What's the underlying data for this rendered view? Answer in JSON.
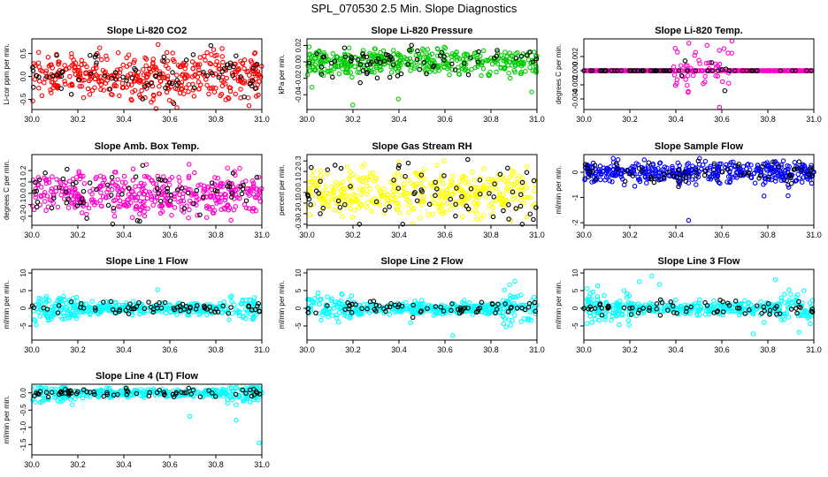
{
  "title": "SPL_070530  2.5 Min. Slope Diagnostics",
  "chart_data": [
    {
      "type": "scatter",
      "title": "Slope Li-820 CO2",
      "ylabel": "Li-cor ppm per min.",
      "color": "#ff0000",
      "xlim": [
        30.0,
        31.0
      ],
      "ylim": [
        -0.72,
        0.82
      ],
      "yticks": [
        -0.5,
        0.0,
        0.5
      ],
      "ytick_labels": [
        "-0.5",
        "0.0",
        "0.5"
      ],
      "xticks": [
        30.0,
        30.2,
        30.4,
        30.6,
        30.8,
        31.0
      ],
      "xtick_labels": [
        "30.0",
        "30.2",
        "30.4",
        "30.6",
        "30.8",
        "31.0"
      ],
      "spread": 0.25,
      "outlier_max": 0.8,
      "outlier_min": -0.7
    },
    {
      "type": "scatter",
      "title": "Slope Li-820 Pressure",
      "ylabel": "kPa per min.",
      "color": "#00cc00",
      "xlim": [
        30.0,
        31.0
      ],
      "ylim": [
        -0.058,
        0.028
      ],
      "yticks": [
        -0.04,
        -0.02,
        0.0,
        0.02
      ],
      "ytick_labels": [
        "-0.04",
        "-0.02",
        "0.00",
        "0.02"
      ],
      "xticks": [
        30.0,
        30.2,
        30.4,
        30.6,
        30.8,
        31.0
      ],
      "xtick_labels": [
        "30.0",
        "30.2",
        "30.4",
        "30.6",
        "30.8",
        "31.0"
      ],
      "spread": 0.008,
      "outlier_max": 0.025,
      "outlier_min": -0.055
    },
    {
      "type": "scatter",
      "title": "Slope Li-820 Temp.",
      "ylabel": "degrees C per min.",
      "color": "#ff00cc",
      "xlim": [
        30.0,
        31.0
      ],
      "ylim": [
        -0.0055,
        0.0045
      ],
      "yticks": [
        -0.004,
        -0.002,
        0.0,
        0.002
      ],
      "ytick_labels": [
        "-0.004",
        "-0.002",
        "0.000",
        "0.002"
      ],
      "xticks": [
        30.0,
        30.2,
        30.4,
        30.6,
        30.8,
        31.0
      ],
      "xtick_labels": [
        "30.0",
        "30.2",
        "30.4",
        "30.6",
        "30.8",
        "31.0"
      ],
      "spread": 0.0,
      "outlier_max": 0.0042,
      "outlier_min": -0.0052
    },
    {
      "type": "scatter",
      "title": "Slope Amb. Box Temp.",
      "ylabel": "degrees C per min.",
      "color": "#ff00cc",
      "xlim": [
        30.0,
        31.0
      ],
      "ylim": [
        -0.28,
        0.34
      ],
      "yticks": [
        -0.2,
        -0.1,
        0.0,
        0.1,
        0.2
      ],
      "ytick_labels": [
        "-0.2",
        "-0.1",
        "0.0",
        "0.1",
        "0.2"
      ],
      "xticks": [
        30.0,
        30.2,
        30.4,
        30.6,
        30.8,
        31.0
      ],
      "xtick_labels": [
        "30.0",
        "30.2",
        "30.4",
        "30.6",
        "30.8",
        "31.0"
      ],
      "spread": 0.09,
      "outlier_max": 0.3,
      "outlier_min": -0.27
    },
    {
      "type": "scatter",
      "title": "Slope Gas Stream RH",
      "ylabel": "percent per min.",
      "color": "#ffff00",
      "xlim": [
        30.0,
        31.0
      ],
      "ylim": [
        -0.31,
        0.36
      ],
      "yticks": [
        -0.3,
        -0.2,
        -0.1,
        0.0,
        0.1,
        0.2,
        0.3
      ],
      "ytick_labels": [
        "-0.3",
        "-0.2",
        "-0.1",
        "0.0",
        "0.1",
        "0.2",
        "0.3"
      ],
      "xticks": [
        30.0,
        30.2,
        30.4,
        30.6,
        30.8,
        31.0
      ],
      "xtick_labels": [
        "30.0",
        "30.2",
        "30.4",
        "30.6",
        "30.8",
        "31.0"
      ],
      "spread": 0.11,
      "outlier_max": 0.34,
      "outlier_min": -0.3
    },
    {
      "type": "scatter",
      "title": "Slope Sample Flow",
      "ylabel": "ml/min per min.",
      "color": "#0000ff",
      "xlim": [
        30.0,
        31.0
      ],
      "ylim": [
        -2.1,
        0.7
      ],
      "yticks": [
        -2,
        -1,
        0
      ],
      "ytick_labels": [
        "-2",
        "-1",
        "0"
      ],
      "xticks": [
        30.0,
        30.2,
        30.4,
        30.6,
        30.8,
        31.0
      ],
      "xtick_labels": [
        "30.0",
        "30.2",
        "30.4",
        "30.6",
        "30.8",
        "31.0"
      ],
      "spread": 0.22,
      "outlier_max": 0.55,
      "outlier_min": -2.0
    },
    {
      "type": "scatter",
      "title": "Slope Line 1 Flow",
      "ylabel": "ml/min per min.",
      "color": "#00ffff",
      "xlim": [
        30.0,
        31.0
      ],
      "ylim": [
        -9,
        11
      ],
      "yticks": [
        -5,
        0,
        5,
        10
      ],
      "ytick_labels": [
        "-5",
        "0",
        "5",
        "10"
      ],
      "xticks": [
        30.0,
        30.2,
        30.4,
        30.6,
        30.8,
        31.0
      ],
      "xtick_labels": [
        "30.0",
        "30.2",
        "30.4",
        "30.6",
        "30.8",
        "31.0"
      ],
      "spread": 0.8,
      "outlier_max": 10.5,
      "outlier_min": -7.5
    },
    {
      "type": "scatter",
      "title": "Slope Line 2 Flow",
      "ylabel": "ml/min per min.",
      "color": "#00ffff",
      "xlim": [
        30.0,
        31.0
      ],
      "ylim": [
        -9,
        11
      ],
      "yticks": [
        -5,
        0,
        5,
        10
      ],
      "ytick_labels": [
        "-5",
        "0",
        "5",
        "10"
      ],
      "xticks": [
        30.0,
        30.2,
        30.4,
        30.6,
        30.8,
        31.0
      ],
      "xtick_labels": [
        "30.0",
        "30.2",
        "30.4",
        "30.6",
        "30.8",
        "31.0"
      ],
      "spread": 0.8,
      "outlier_max": 10.5,
      "outlier_min": -8.0
    },
    {
      "type": "scatter",
      "title": "Slope Line 3 Flow",
      "ylabel": "ml/min per min.",
      "color": "#00ffff",
      "xlim": [
        30.0,
        31.0
      ],
      "ylim": [
        -9,
        11
      ],
      "yticks": [
        -5,
        0,
        5,
        10
      ],
      "ytick_labels": [
        "-5",
        "0",
        "5",
        "10"
      ],
      "xticks": [
        30.0,
        30.2,
        30.4,
        30.6,
        30.8,
        31.0
      ],
      "xtick_labels": [
        "30.0",
        "30.2",
        "30.4",
        "30.6",
        "30.8",
        "31.0"
      ],
      "spread": 0.9,
      "outlier_max": 10.5,
      "outlier_min": -8.5
    },
    {
      "type": "scatter",
      "title": "Slope Line 4 (LT) Flow",
      "ylabel": "ml/min per min.",
      "color": "#00ffff",
      "xlim": [
        30.0,
        31.0
      ],
      "ylim": [
        -1.8,
        0.25
      ],
      "yticks": [
        -1.5,
        -1.0,
        -0.5,
        0.0
      ],
      "ytick_labels": [
        "-1.5",
        "-1.0",
        "-0.5",
        "0.0"
      ],
      "xticks": [
        30.0,
        30.2,
        30.4,
        30.6,
        30.8,
        31.0
      ],
      "xtick_labels": [
        "30.0",
        "30.2",
        "30.4",
        "30.6",
        "30.8",
        "31.0"
      ],
      "spread": 0.06,
      "outlier_max": 0.15,
      "outlier_min": -1.7
    }
  ]
}
